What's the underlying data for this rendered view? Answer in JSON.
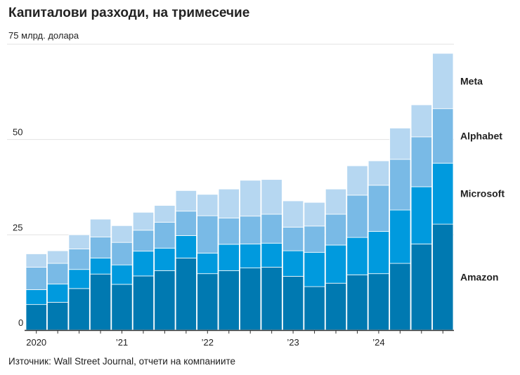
{
  "chart_data": {
    "type": "bar",
    "stacked": true,
    "title": "Капиталови разходи, на тримесечие",
    "ylabel": "млрд. долара",
    "y_unit_label": "75 млрд. долара",
    "ylim": [
      0,
      75
    ],
    "yticks": [
      0,
      25,
      50
    ],
    "grid": true,
    "legend_placement": "right",
    "categories": [
      "2020 Q1",
      "2020 Q2",
      "2020 Q3",
      "2020 Q4",
      "2021 Q1",
      "2021 Q2",
      "2021 Q3",
      "2021 Q4",
      "2022 Q1",
      "2022 Q2",
      "2022 Q3",
      "2022 Q4",
      "2023 Q1",
      "2023 Q2",
      "2023 Q3",
      "2023 Q4",
      "2024 Q1",
      "2024 Q2",
      "2024 Q3",
      "2024 Q4"
    ],
    "xtick_labels": [
      {
        "index": 0,
        "label": "2020"
      },
      {
        "index": 4,
        "label": "’21"
      },
      {
        "index": 8,
        "label": "’22"
      },
      {
        "index": 12,
        "label": "’23"
      },
      {
        "index": 16,
        "label": "’24"
      }
    ],
    "series": [
      {
        "name": "Amazon",
        "color": "#0079b1",
        "values": [
          6.7,
          7.3,
          10.9,
          14.7,
          12.0,
          14.2,
          15.6,
          18.9,
          14.8,
          15.6,
          16.3,
          16.5,
          14.1,
          11.4,
          12.3,
          14.5,
          14.8,
          17.5,
          22.6,
          27.8
        ]
      },
      {
        "name": "Microsoft",
        "color": "#009ade",
        "values": [
          3.9,
          4.8,
          5.0,
          4.2,
          5.1,
          6.5,
          5.9,
          5.9,
          5.4,
          6.9,
          6.3,
          6.3,
          6.7,
          9.0,
          10.0,
          9.8,
          11.1,
          14.0,
          15.0,
          16.0
        ]
      },
      {
        "name": "Alphabet",
        "color": "#79bae6",
        "values": [
          5.9,
          5.4,
          5.4,
          5.5,
          5.9,
          5.5,
          6.8,
          6.4,
          9.8,
          6.9,
          7.3,
          7.6,
          6.2,
          6.9,
          8.1,
          11.1,
          12.1,
          13.3,
          13.1,
          14.3
        ]
      },
      {
        "name": "Meta",
        "color": "#b6d7f1",
        "values": [
          3.5,
          3.3,
          3.7,
          4.7,
          4.4,
          4.7,
          4.4,
          5.4,
          5.6,
          7.6,
          9.4,
          9.1,
          6.9,
          6.2,
          6.6,
          7.7,
          6.4,
          8.2,
          8.4,
          14.5
        ]
      }
    ],
    "source": "Източник: Wall Street Journal, отчети на компаниите"
  }
}
